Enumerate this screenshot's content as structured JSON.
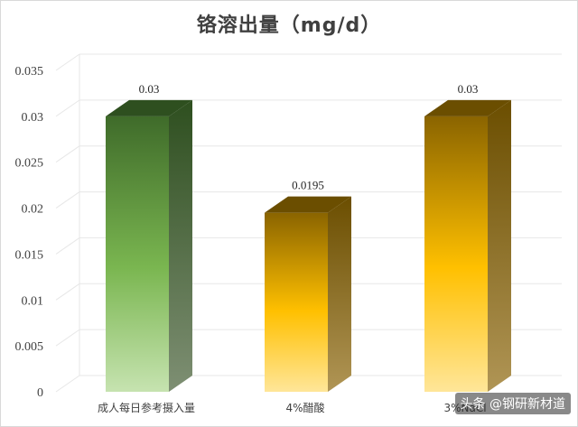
{
  "chart_data": {
    "type": "bar",
    "title": "铬溶出量（mg/d）",
    "categories": [
      "成人每日参考摄入量",
      "4%醋酸",
      "3%NaCl"
    ],
    "values": [
      0.03,
      0.0195,
      0.03
    ],
    "data_labels": [
      "0.03",
      "0.0195",
      "0.03"
    ],
    "ylim": [
      0,
      0.035
    ],
    "yticks": [
      "0",
      "0.005",
      "0.01",
      "0.015",
      "0.02",
      "0.025",
      "0.03",
      "0.035"
    ],
    "ytick_values": [
      0,
      0.005,
      0.01,
      0.015,
      0.02,
      0.025,
      0.03,
      0.035
    ],
    "grid": true,
    "style": "3d-column",
    "colors": {
      "bar1_top": "#3f6b2a",
      "bar1_bottom": "#c6e3b0",
      "bar1_side": "#2e4f1f",
      "bar2_top": "#8a6400",
      "bar2_mid": "#ffc000",
      "bar2_bottom": "#ffe699",
      "bar2_side": "#6b4e00",
      "bar3_top": "#8a6400",
      "bar3_mid": "#ffc000",
      "bar3_bottom": "#ffe699",
      "bar3_side": "#6b4e00",
      "grid": "#e7e7e7",
      "text": "#404040"
    }
  },
  "watermark": "头条 @钢研新材道"
}
